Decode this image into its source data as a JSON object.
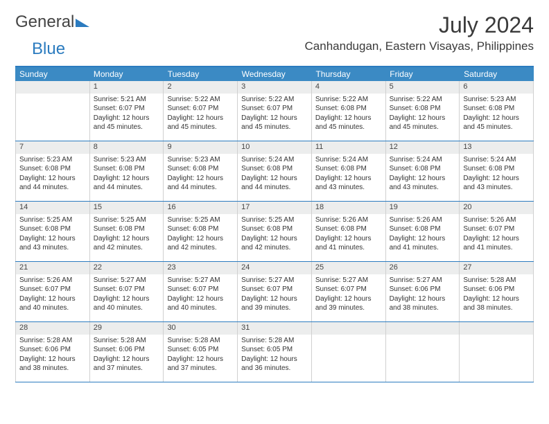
{
  "logo": {
    "part1": "General",
    "part2": "Blue"
  },
  "title": "July 2024",
  "location": "Canhandugan, Eastern Visayas, Philippines",
  "colors": {
    "header_bar": "#3b8ac4",
    "accent": "#2b7bbf",
    "daynum_bg": "#eceded",
    "text": "#333333"
  },
  "weekdays": [
    "Sunday",
    "Monday",
    "Tuesday",
    "Wednesday",
    "Thursday",
    "Friday",
    "Saturday"
  ],
  "weeks": [
    [
      {
        "n": "",
        "sr": "",
        "ss": "",
        "d1": "",
        "d2": ""
      },
      {
        "n": "1",
        "sr": "Sunrise: 5:21 AM",
        "ss": "Sunset: 6:07 PM",
        "d1": "Daylight: 12 hours",
        "d2": "and 45 minutes."
      },
      {
        "n": "2",
        "sr": "Sunrise: 5:22 AM",
        "ss": "Sunset: 6:07 PM",
        "d1": "Daylight: 12 hours",
        "d2": "and 45 minutes."
      },
      {
        "n": "3",
        "sr": "Sunrise: 5:22 AM",
        "ss": "Sunset: 6:07 PM",
        "d1": "Daylight: 12 hours",
        "d2": "and 45 minutes."
      },
      {
        "n": "4",
        "sr": "Sunrise: 5:22 AM",
        "ss": "Sunset: 6:08 PM",
        "d1": "Daylight: 12 hours",
        "d2": "and 45 minutes."
      },
      {
        "n": "5",
        "sr": "Sunrise: 5:22 AM",
        "ss": "Sunset: 6:08 PM",
        "d1": "Daylight: 12 hours",
        "d2": "and 45 minutes."
      },
      {
        "n": "6",
        "sr": "Sunrise: 5:23 AM",
        "ss": "Sunset: 6:08 PM",
        "d1": "Daylight: 12 hours",
        "d2": "and 45 minutes."
      }
    ],
    [
      {
        "n": "7",
        "sr": "Sunrise: 5:23 AM",
        "ss": "Sunset: 6:08 PM",
        "d1": "Daylight: 12 hours",
        "d2": "and 44 minutes."
      },
      {
        "n": "8",
        "sr": "Sunrise: 5:23 AM",
        "ss": "Sunset: 6:08 PM",
        "d1": "Daylight: 12 hours",
        "d2": "and 44 minutes."
      },
      {
        "n": "9",
        "sr": "Sunrise: 5:23 AM",
        "ss": "Sunset: 6:08 PM",
        "d1": "Daylight: 12 hours",
        "d2": "and 44 minutes."
      },
      {
        "n": "10",
        "sr": "Sunrise: 5:24 AM",
        "ss": "Sunset: 6:08 PM",
        "d1": "Daylight: 12 hours",
        "d2": "and 44 minutes."
      },
      {
        "n": "11",
        "sr": "Sunrise: 5:24 AM",
        "ss": "Sunset: 6:08 PM",
        "d1": "Daylight: 12 hours",
        "d2": "and 43 minutes."
      },
      {
        "n": "12",
        "sr": "Sunrise: 5:24 AM",
        "ss": "Sunset: 6:08 PM",
        "d1": "Daylight: 12 hours",
        "d2": "and 43 minutes."
      },
      {
        "n": "13",
        "sr": "Sunrise: 5:24 AM",
        "ss": "Sunset: 6:08 PM",
        "d1": "Daylight: 12 hours",
        "d2": "and 43 minutes."
      }
    ],
    [
      {
        "n": "14",
        "sr": "Sunrise: 5:25 AM",
        "ss": "Sunset: 6:08 PM",
        "d1": "Daylight: 12 hours",
        "d2": "and 43 minutes."
      },
      {
        "n": "15",
        "sr": "Sunrise: 5:25 AM",
        "ss": "Sunset: 6:08 PM",
        "d1": "Daylight: 12 hours",
        "d2": "and 42 minutes."
      },
      {
        "n": "16",
        "sr": "Sunrise: 5:25 AM",
        "ss": "Sunset: 6:08 PM",
        "d1": "Daylight: 12 hours",
        "d2": "and 42 minutes."
      },
      {
        "n": "17",
        "sr": "Sunrise: 5:25 AM",
        "ss": "Sunset: 6:08 PM",
        "d1": "Daylight: 12 hours",
        "d2": "and 42 minutes."
      },
      {
        "n": "18",
        "sr": "Sunrise: 5:26 AM",
        "ss": "Sunset: 6:08 PM",
        "d1": "Daylight: 12 hours",
        "d2": "and 41 minutes."
      },
      {
        "n": "19",
        "sr": "Sunrise: 5:26 AM",
        "ss": "Sunset: 6:08 PM",
        "d1": "Daylight: 12 hours",
        "d2": "and 41 minutes."
      },
      {
        "n": "20",
        "sr": "Sunrise: 5:26 AM",
        "ss": "Sunset: 6:07 PM",
        "d1": "Daylight: 12 hours",
        "d2": "and 41 minutes."
      }
    ],
    [
      {
        "n": "21",
        "sr": "Sunrise: 5:26 AM",
        "ss": "Sunset: 6:07 PM",
        "d1": "Daylight: 12 hours",
        "d2": "and 40 minutes."
      },
      {
        "n": "22",
        "sr": "Sunrise: 5:27 AM",
        "ss": "Sunset: 6:07 PM",
        "d1": "Daylight: 12 hours",
        "d2": "and 40 minutes."
      },
      {
        "n": "23",
        "sr": "Sunrise: 5:27 AM",
        "ss": "Sunset: 6:07 PM",
        "d1": "Daylight: 12 hours",
        "d2": "and 40 minutes."
      },
      {
        "n": "24",
        "sr": "Sunrise: 5:27 AM",
        "ss": "Sunset: 6:07 PM",
        "d1": "Daylight: 12 hours",
        "d2": "and 39 minutes."
      },
      {
        "n": "25",
        "sr": "Sunrise: 5:27 AM",
        "ss": "Sunset: 6:07 PM",
        "d1": "Daylight: 12 hours",
        "d2": "and 39 minutes."
      },
      {
        "n": "26",
        "sr": "Sunrise: 5:27 AM",
        "ss": "Sunset: 6:06 PM",
        "d1": "Daylight: 12 hours",
        "d2": "and 38 minutes."
      },
      {
        "n": "27",
        "sr": "Sunrise: 5:28 AM",
        "ss": "Sunset: 6:06 PM",
        "d1": "Daylight: 12 hours",
        "d2": "and 38 minutes."
      }
    ],
    [
      {
        "n": "28",
        "sr": "Sunrise: 5:28 AM",
        "ss": "Sunset: 6:06 PM",
        "d1": "Daylight: 12 hours",
        "d2": "and 38 minutes."
      },
      {
        "n": "29",
        "sr": "Sunrise: 5:28 AM",
        "ss": "Sunset: 6:06 PM",
        "d1": "Daylight: 12 hours",
        "d2": "and 37 minutes."
      },
      {
        "n": "30",
        "sr": "Sunrise: 5:28 AM",
        "ss": "Sunset: 6:05 PM",
        "d1": "Daylight: 12 hours",
        "d2": "and 37 minutes."
      },
      {
        "n": "31",
        "sr": "Sunrise: 5:28 AM",
        "ss": "Sunset: 6:05 PM",
        "d1": "Daylight: 12 hours",
        "d2": "and 36 minutes."
      },
      {
        "n": "",
        "sr": "",
        "ss": "",
        "d1": "",
        "d2": ""
      },
      {
        "n": "",
        "sr": "",
        "ss": "",
        "d1": "",
        "d2": ""
      },
      {
        "n": "",
        "sr": "",
        "ss": "",
        "d1": "",
        "d2": ""
      }
    ]
  ]
}
